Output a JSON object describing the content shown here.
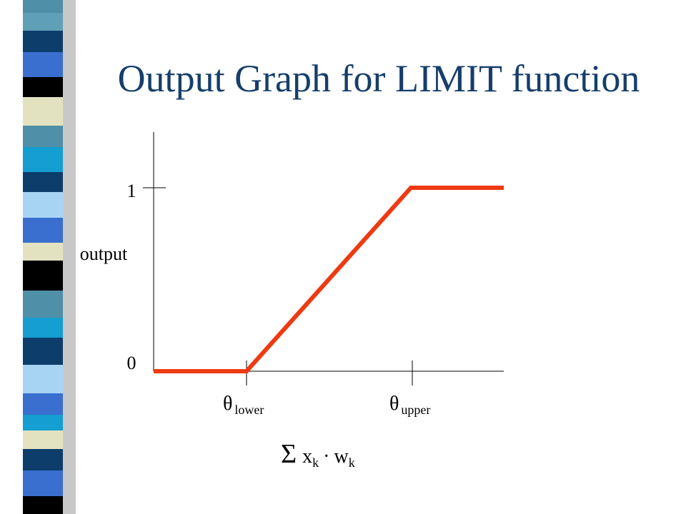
{
  "title": "Output Graph for LIMIT function",
  "y_axis": {
    "label": "output",
    "ticks": [
      0,
      1
    ]
  },
  "x_axis": {
    "ticks": [
      {
        "symbol": "θ",
        "subscript": "lower"
      },
      {
        "symbol": "θ",
        "subscript": "upper"
      }
    ],
    "label": {
      "sigma": "Σ",
      "x": "x",
      "x_sub": "k",
      "dot": "·",
      "w": "w",
      "w_sub": "k"
    }
  }
}
